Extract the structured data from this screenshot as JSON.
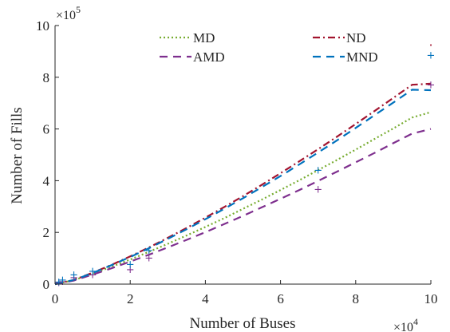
{
  "chart_data": {
    "type": "line",
    "xlabel": "Number of Buses",
    "ylabel": "Number of Fills",
    "x_exponent_base": "×10",
    "x_exponent_power": "4",
    "y_exponent_base": "×10",
    "y_exponent_power": "5",
    "xlim": [
      0,
      10
    ],
    "ylim": [
      0,
      10
    ],
    "x_ticks": [
      0,
      2,
      4,
      6,
      8,
      10
    ],
    "y_ticks": [
      0,
      2,
      4,
      6,
      8,
      10
    ],
    "grid": false,
    "legend_position": "top",
    "x": [
      0,
      0.5,
      1,
      1.5,
      2,
      2.5,
      3,
      3.5,
      4,
      4.5,
      5,
      5.5,
      6,
      6.5,
      7,
      7.5,
      8,
      8.5,
      9,
      9.5,
      10
    ],
    "series": [
      {
        "name": "MD",
        "color": "#77ac30",
        "dash": "dotted",
        "values": [
          0,
          0.15,
          0.4,
          0.67,
          0.95,
          1.25,
          1.56,
          1.88,
          2.21,
          2.55,
          2.91,
          3.27,
          3.64,
          4.02,
          4.41,
          4.8,
          5.2,
          5.61,
          6.02,
          6.44,
          6.65
        ]
      },
      {
        "name": "ND",
        "color": "#a2142f",
        "dash": "dashdot",
        "values": [
          0,
          0.16,
          0.44,
          0.74,
          1.07,
          1.42,
          1.79,
          2.17,
          2.57,
          2.98,
          3.4,
          3.84,
          4.29,
          4.75,
          5.22,
          5.7,
          6.19,
          6.69,
          7.2,
          7.71,
          7.75
        ]
      },
      {
        "name": "AMD",
        "color": "#7e2f8e",
        "dash": "dashed",
        "values": [
          0,
          0.14,
          0.37,
          0.61,
          0.87,
          1.14,
          1.42,
          1.71,
          2.01,
          2.32,
          2.64,
          2.97,
          3.3,
          3.64,
          3.99,
          4.35,
          4.71,
          5.07,
          5.45,
          5.82,
          6.0
        ]
      },
      {
        "name": "MND",
        "color": "#0072bd",
        "dash": "dashed",
        "values": [
          0,
          0.16,
          0.43,
          0.73,
          1.05,
          1.39,
          1.75,
          2.12,
          2.51,
          2.91,
          3.32,
          3.75,
          4.18,
          4.63,
          5.09,
          5.56,
          6.04,
          6.53,
          7.02,
          7.52,
          7.5
        ]
      }
    ],
    "markers": [
      {
        "name": "AMD",
        "symbol": "+",
        "color": "#7e2f8e",
        "x": [
          0.1,
          0.2,
          0.5,
          1,
          2,
          2.5,
          7,
          10
        ],
        "y": [
          0.05,
          0.1,
          0.25,
          0.35,
          0.55,
          1.0,
          3.65,
          7.7
        ]
      },
      {
        "name": "MND",
        "symbol": "+",
        "color": "#0072bd",
        "x": [
          0.1,
          0.2,
          0.5,
          1,
          2,
          2.5,
          7,
          10
        ],
        "y": [
          0.08,
          0.15,
          0.35,
          0.5,
          0.75,
          1.3,
          4.4,
          8.85
        ]
      },
      {
        "name": "ND",
        "symbol": "·",
        "color": "#a2142f",
        "x": [
          10
        ],
        "y": [
          9.2
        ]
      }
    ]
  }
}
